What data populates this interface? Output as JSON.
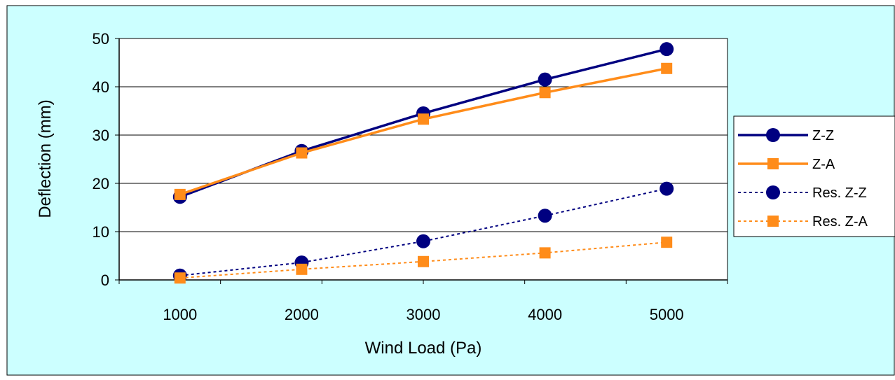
{
  "colors": {
    "chart_background": "#ccffff",
    "plot_background": "#ffffff",
    "gridline": "#000000",
    "axis": "#000000",
    "navy": "#000080",
    "orange": "#ff8c1a"
  },
  "chart_data": {
    "type": "line",
    "title": "",
    "xlabel": "Wind Load (Pa)",
    "ylabel": "Deflection (mm)",
    "x": [
      1000,
      2000,
      3000,
      4000,
      5000
    ],
    "x_tick_labels": [
      "1000",
      "2000",
      "3000",
      "4000",
      "5000"
    ],
    "y_tick_labels": [
      "0",
      "10",
      "20",
      "30",
      "40",
      "50"
    ],
    "xlim": [
      500,
      5500
    ],
    "ylim": [
      0,
      50
    ],
    "y_major_step": 10,
    "grid": {
      "horizontal": true,
      "vertical": false
    },
    "legend_position": "right",
    "series": [
      {
        "name": "Z-Z",
        "values": [
          17.2,
          26.7,
          34.5,
          41.5,
          47.8
        ],
        "color": "#000080",
        "line_style": "solid",
        "marker": "circle"
      },
      {
        "name": "Z-A",
        "values": [
          17.7,
          26.3,
          33.3,
          38.8,
          43.8
        ],
        "color": "#ff8c1a",
        "line_style": "solid",
        "marker": "square"
      },
      {
        "name": "Res. Z-Z",
        "values": [
          0.9,
          3.6,
          8.0,
          13.3,
          18.9
        ],
        "color": "#000080",
        "line_style": "dotted",
        "marker": "circle"
      },
      {
        "name": "Res. Z-A",
        "values": [
          0.4,
          2.2,
          3.8,
          5.6,
          7.8
        ],
        "color": "#ff8c1a",
        "line_style": "dotted",
        "marker": "square"
      }
    ]
  }
}
